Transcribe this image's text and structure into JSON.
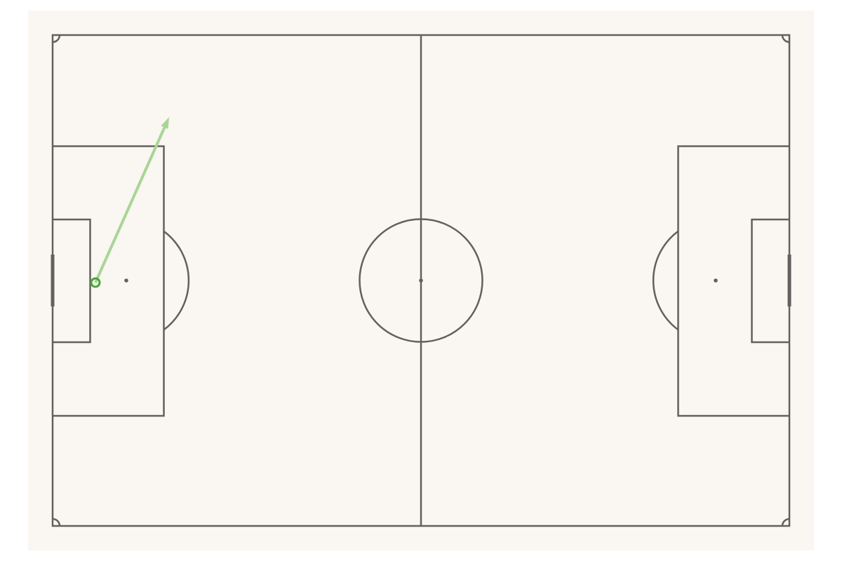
{
  "colors": {
    "page_background": "#ffffff",
    "pitch_background": "#faf6f1",
    "line_color": "#616161",
    "event_start": "#4da63a",
    "event_arrow": "#a8d596"
  },
  "pitch": {
    "length_m": 105,
    "width_m": 70
  },
  "events": [
    {
      "type": "pass",
      "start": {
        "x": 6.1,
        "y": 35.3
      },
      "end": {
        "x": 16.6,
        "y": 11.7
      }
    }
  ]
}
